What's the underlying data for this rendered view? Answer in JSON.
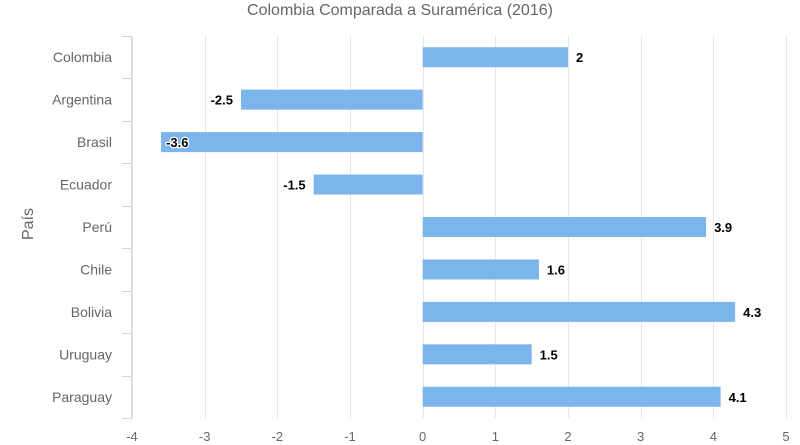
{
  "chart_data": {
    "type": "bar",
    "orientation": "horizontal",
    "title": "Colombia Comparada a Suramérica (2016)",
    "ylabel": "País",
    "xlabel": "",
    "categories": [
      "Colombia",
      "Argentina",
      "Brasil",
      "Ecuador",
      "Perú",
      "Chile",
      "Bolivia",
      "Uruguay",
      "Paraguay"
    ],
    "values": [
      2,
      -2.5,
      -3.6,
      -1.5,
      3.9,
      1.6,
      4.3,
      1.5,
      4.1
    ],
    "value_labels": [
      "2",
      "-2.5",
      "-3.6",
      "-1.5",
      "3.9",
      "1.6",
      "4.3",
      "1.5",
      "4.1"
    ],
    "xlim": [
      -4,
      5
    ],
    "xticks": [
      "-4",
      "-3",
      "-2",
      "-1",
      "0",
      "1",
      "2",
      "3",
      "4",
      "5"
    ],
    "grid": true,
    "bar_color": "#7cb5ec",
    "grid_color": "#e6e6e6",
    "axis_color": "#ccd6eb"
  }
}
